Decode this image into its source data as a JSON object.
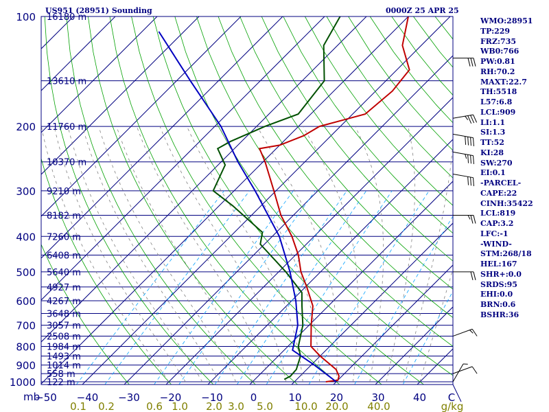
{
  "header": {
    "station_title": "US951 (28951) Sounding",
    "time_title": "0000Z 25 APR 25"
  },
  "stats": [
    "WMO:28951",
    "TP:229",
    "FRZ:735",
    "WB0:766",
    "PW:0.81",
    "RH:70.2",
    "MAXT:22.7",
    "TH:5518",
    "L57:6.8",
    "LCL:909",
    "LI:1.1",
    "SI:1.3",
    "TT:52",
    "KI:28",
    "SW:270",
    "EI:0.1",
    "-PARCEL-",
    "CAPE:22",
    "CINH:35422",
    "LCL:819",
    "CAP:3.2",
    "LFC:-1",
    "-WIND-",
    "STM:268/18",
    "HEL:167",
    "SHR+:0.0",
    "SRDS:95",
    "EHI:0.0",
    "BRN:0.6",
    "BSHR:36"
  ],
  "colors": {
    "frame": "#000080",
    "isobar": "#000080",
    "isotherm": "#000080",
    "dry_adiabat": "#00a000",
    "moist_adiabat": "#808080",
    "mixing_ratio": "#00a0ff",
    "temperature": "#c00000",
    "dewpoint": "#005000",
    "parcel": "#0000c0",
    "mixing_label": "#808000",
    "wind_barb": "#000000"
  },
  "chart_data": {
    "type": "line",
    "title": "US951 (28951) Sounding",
    "xlabel": "C",
    "ylabel": "mb",
    "x_ticks": [
      -50,
      -40,
      -30,
      -20,
      -10,
      0,
      10,
      20,
      30,
      40
    ],
    "x_unit_label": "C",
    "y_ticks": [
      100,
      200,
      300,
      400,
      500,
      600,
      700,
      800,
      900,
      1000
    ],
    "y_unit_label": "mb",
    "mixing_ratio_labels": [
      "0.1",
      "0.2",
      "0.6",
      "1.0",
      "2.0",
      "3.0",
      "5.0",
      "10.0",
      "20.0",
      "40.0"
    ],
    "mixing_ratio_unit": "g/kg",
    "height_labels": [
      {
        "p": 100,
        "h": "16180 m"
      },
      {
        "p": 150,
        "h": "13610 m"
      },
      {
        "p": 200,
        "h": "11760 m"
      },
      {
        "p": 250,
        "h": "10370 m"
      },
      {
        "p": 300,
        "h": "9210 m"
      },
      {
        "p": 350,
        "h": "8182 m"
      },
      {
        "p": 400,
        "h": "7260 m"
      },
      {
        "p": 450,
        "h": "6408 m"
      },
      {
        "p": 500,
        "h": "5640 m"
      },
      {
        "p": 550,
        "h": "4927 m"
      },
      {
        "p": 600,
        "h": "4267 m"
      },
      {
        "p": 650,
        "h": "3648 m"
      },
      {
        "p": 700,
        "h": "3057 m"
      },
      {
        "p": 750,
        "h": "2508 m"
      },
      {
        "p": 800,
        "h": "1984 m"
      },
      {
        "p": 850,
        "h": "1493 m"
      },
      {
        "p": 900,
        "h": "1014 m"
      },
      {
        "p": 950,
        "h": "558 m"
      },
      {
        "p": 1000,
        "h": "122 m"
      }
    ],
    "series": [
      {
        "name": "Temperature",
        "points": [
          {
            "p": 1000,
            "t": 17.5
          },
          {
            "p": 990,
            "t": 20.0
          },
          {
            "p": 965,
            "t": 19.3
          },
          {
            "p": 925,
            "t": 17.0
          },
          {
            "p": 850,
            "t": 10.0
          },
          {
            "p": 800,
            "t": 5.5
          },
          {
            "p": 700,
            "t": 0.5
          },
          {
            "p": 620,
            "t": -3.7
          },
          {
            "p": 550,
            "t": -9.7
          },
          {
            "p": 500,
            "t": -14.7
          },
          {
            "p": 450,
            "t": -19.3
          },
          {
            "p": 400,
            "t": -25.3
          },
          {
            "p": 350,
            "t": -33.0
          },
          {
            "p": 300,
            "t": -40.5
          },
          {
            "p": 250,
            "t": -49.5
          },
          {
            "p": 230,
            "t": -54.0
          },
          {
            "p": 225,
            "t": -50.0
          },
          {
            "p": 212,
            "t": -46.5
          },
          {
            "p": 200,
            "t": -45.0
          },
          {
            "p": 185,
            "t": -37.0
          },
          {
            "p": 160,
            "t": -36.0
          },
          {
            "p": 150,
            "t": -36.5
          },
          {
            "p": 140,
            "t": -37.0
          },
          {
            "p": 120,
            "t": -44.5
          },
          {
            "p": 100,
            "t": -50.0
          }
        ]
      },
      {
        "name": "Dewpoint",
        "points": [
          {
            "p": 985,
            "t": 7.0
          },
          {
            "p": 965,
            "t": 7.7
          },
          {
            "p": 925,
            "t": 7.5
          },
          {
            "p": 850,
            "t": 5.3
          },
          {
            "p": 800,
            "t": 2.5
          },
          {
            "p": 700,
            "t": -1.5
          },
          {
            "p": 620,
            "t": -6.3
          },
          {
            "p": 570,
            "t": -9.5
          },
          {
            "p": 500,
            "t": -18.3
          },
          {
            "p": 420,
            "t": -31.0
          },
          {
            "p": 390,
            "t": -33.3
          },
          {
            "p": 330,
            "t": -46.7
          },
          {
            "p": 300,
            "t": -55.0
          },
          {
            "p": 255,
            "t": -58.3
          },
          {
            "p": 230,
            "t": -64.0
          },
          {
            "p": 220,
            "t": -62.7
          },
          {
            "p": 200,
            "t": -58.0
          },
          {
            "p": 185,
            "t": -53.0
          },
          {
            "p": 150,
            "t": -54.7
          },
          {
            "p": 120,
            "t": -63.3
          },
          {
            "p": 100,
            "t": -66.3
          }
        ]
      },
      {
        "name": "Parcel",
        "points": [
          {
            "p": 1000,
            "t": 20.0
          },
          {
            "p": 900,
            "t": 10.8
          },
          {
            "p": 819,
            "t": 2.0
          },
          {
            "p": 700,
            "t": -2.7
          },
          {
            "p": 600,
            "t": -9.0
          },
          {
            "p": 500,
            "t": -17.3
          },
          {
            "p": 400,
            "t": -28.3
          },
          {
            "p": 300,
            "t": -45.0
          },
          {
            "p": 250,
            "t": -56.0
          },
          {
            "p": 200,
            "t": -68.5
          },
          {
            "p": 150,
            "t": -86.7
          },
          {
            "p": 110,
            "t": -106.0
          }
        ]
      }
    ],
    "wind_barbs": [
      {
        "p": 130,
        "dir": 270,
        "spd": 30
      },
      {
        "p": 190,
        "dir": 260,
        "spd": 35
      },
      {
        "p": 210,
        "dir": 280,
        "spd": 40
      },
      {
        "p": 235,
        "dir": 280,
        "spd": 35
      },
      {
        "p": 270,
        "dir": 280,
        "spd": 30
      },
      {
        "p": 350,
        "dir": 270,
        "spd": 25
      },
      {
        "p": 500,
        "dir": 270,
        "spd": 20
      },
      {
        "p": 750,
        "dir": 250,
        "spd": 15
      },
      {
        "p": 950,
        "dir": 250,
        "spd": 10
      },
      {
        "p": 1000,
        "dir": 210,
        "spd": 5
      }
    ],
    "ylim": [
      100,
      1050
    ],
    "xlim": [
      -50,
      50
    ],
    "grid": true
  }
}
